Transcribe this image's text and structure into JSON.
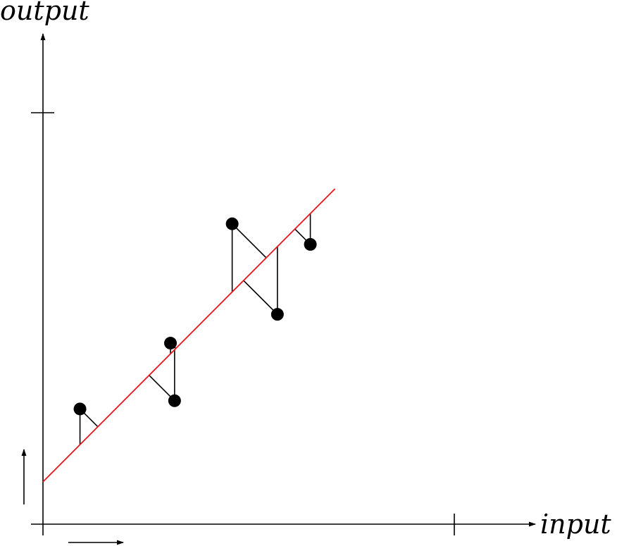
{
  "diagram": {
    "x_axis_label": "input",
    "y_axis_label": "output",
    "line_color": "#e8141c",
    "ink_color": "#000000",
    "points": [
      {
        "x": 0.09,
        "y": 0.28
      },
      {
        "x": 0.31,
        "y": 0.44
      },
      {
        "x": 0.32,
        "y": 0.3
      },
      {
        "x": 0.46,
        "y": 0.73
      },
      {
        "x": 0.57,
        "y": 0.51
      },
      {
        "x": 0.65,
        "y": 0.68
      }
    ],
    "fit_line": {
      "intercept": 0.103,
      "slope": 1.003,
      "x_start": 0.0,
      "x_end": 0.71
    }
  }
}
